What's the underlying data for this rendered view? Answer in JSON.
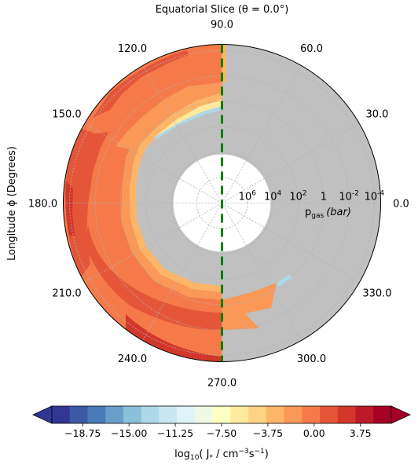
{
  "chart_data": {
    "type": "heatmap",
    "projection": "polar",
    "title": "Equatorial Slice (θ = 0.0°)",
    "ylabel": "Longitude ϕ (Degrees)",
    "radial_label": "pgas (bar)",
    "radial_label_main": "p",
    "radial_label_sub": "gas",
    "radial_label_unit": "(bar)",
    "angular_ticks": [
      "0.0",
      "30.0",
      "60.0",
      "90.0",
      "120.0",
      "150.0",
      "180.0",
      "210.0",
      "240.0",
      "270.0",
      "300.0",
      "330.0"
    ],
    "radial_ticks": [
      {
        "base": "10",
        "exp": "-4",
        "log10_p": -4
      },
      {
        "base": "10",
        "exp": "-2",
        "log10_p": -2
      },
      {
        "base": "1",
        "exp": "",
        "log10_p": 0
      },
      {
        "base": "10",
        "exp": "2",
        "log10_p": 2
      },
      {
        "base": "10",
        "exp": "4",
        "log10_p": 4
      },
      {
        "base": "10",
        "exp": "6",
        "log10_p": 6
      }
    ],
    "radial_axis": "log10 pressure, decreasing outward",
    "radial_range_log10_bar": [
      8,
      -4.5
    ],
    "grid": true,
    "masked_color": "#c0c0c0",
    "substellar_marker": {
      "angles_deg": [
        90,
        270
      ],
      "color": "#008000",
      "style": "dashed"
    },
    "colorbar": {
      "label_prefix": "log",
      "label_sub": "10",
      "label_body": "( J",
      "label_star": "*",
      "label_units": " / cm",
      "label_exp1": "−3",
      "label_s": "s",
      "label_exp2": "−1",
      "label_close": ")",
      "tick_labels": [
        "−18.75",
        "−15.00",
        "−11.25",
        "−7.50",
        "−3.75",
        "0.00",
        "3.75"
      ],
      "tick_values": [
        -18.75,
        -15.0,
        -11.25,
        -7.5,
        -3.75,
        0.0,
        3.75
      ],
      "range": [
        -21.25,
        6.25
      ],
      "extend": "both",
      "levels": [
        -21.25,
        -20.0,
        -18.75,
        -17.5,
        -16.25,
        -15.0,
        -13.75,
        -12.5,
        -11.25,
        -10.0,
        -8.75,
        -7.5,
        -6.25,
        -5.0,
        -3.75,
        -2.5,
        -1.25,
        0.0,
        1.25,
        2.5,
        3.75,
        5.0,
        6.25
      ],
      "colors": [
        "#313695",
        "#3c59a6",
        "#4a7ab7",
        "#6a9dc8",
        "#8bbfda",
        "#add8e9",
        "#c9e7f1",
        "#e0f3f8",
        "#f0f9e2",
        "#feffc0",
        "#fee99d",
        "#fed384",
        "#fdb567",
        "#fa9857",
        "#f67a49",
        "#e55639",
        "#d3372b",
        "#bc1a28",
        "#a50026"
      ],
      "below_color": "#313695",
      "above_color": "#a50026"
    },
    "regions": [
      {
        "name": "inner-white-core",
        "color": "#ffffff",
        "log10_p_from": 8,
        "log10_p_to": 6.3
      },
      {
        "name": "night-side-gray",
        "color": "#c0c0c0",
        "angle_deg": [
          -90,
          90
        ]
      },
      {
        "name": "day-side-outer-band",
        "value_log10_J": [
          -2,
          4
        ],
        "angle_deg": [
          90,
          270
        ]
      }
    ]
  }
}
